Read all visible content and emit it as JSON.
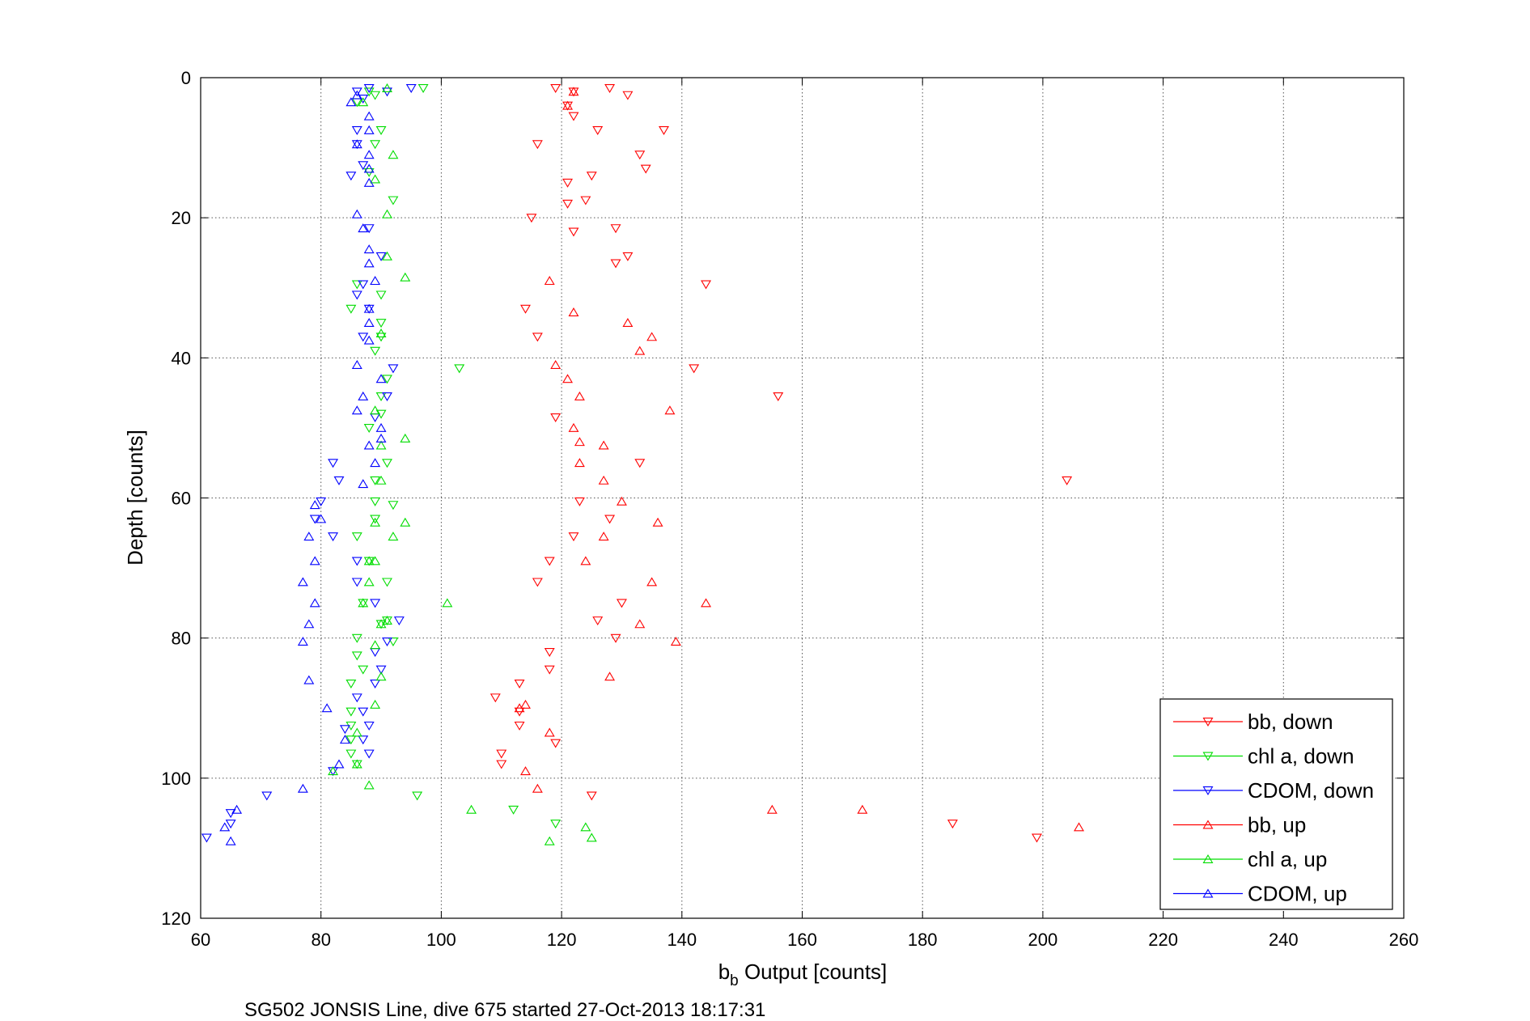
{
  "chart_data": {
    "type": "scatter",
    "title": "",
    "xlabel_main": "b",
    "xlabel_sub": "b",
    "xlabel_rest": " Output [counts]",
    "ylabel": "Depth [counts]",
    "xlim": [
      60,
      260
    ],
    "ylim": [
      0,
      120
    ],
    "y_inverted": true,
    "xticks": [
      60,
      80,
      100,
      120,
      140,
      160,
      180,
      200,
      220,
      240,
      260
    ],
    "yticks": [
      0,
      20,
      40,
      60,
      80,
      100,
      120
    ],
    "grid": true,
    "legend_position": "bottom-right",
    "caption": "SG502 JONSIS Line, dive 675 started 27-Oct-2013 18:17:31",
    "colors": {
      "bb": "#ff0000",
      "chl": "#00dd00",
      "cdom": "#0000ff",
      "grid": "#555555",
      "axis": "#000000"
    },
    "series": [
      {
        "name": "bb, down",
        "color": "#ff0000",
        "marker": "triangle-down",
        "points": [
          [
            119,
            1.5
          ],
          [
            122,
            2
          ],
          [
            128,
            1.5
          ],
          [
            131,
            2.5
          ],
          [
            121,
            4
          ],
          [
            122,
            5.5
          ],
          [
            126,
            7.5
          ],
          [
            137,
            7.5
          ],
          [
            116,
            9.5
          ],
          [
            133,
            11
          ],
          [
            134,
            13
          ],
          [
            125,
            14
          ],
          [
            121,
            15
          ],
          [
            124,
            17.5
          ],
          [
            121,
            18
          ],
          [
            115,
            20
          ],
          [
            129,
            21.5
          ],
          [
            122,
            22
          ],
          [
            131,
            25.5
          ],
          [
            129,
            26.5
          ],
          [
            144,
            29.5
          ],
          [
            114,
            33
          ],
          [
            116,
            37
          ],
          [
            142,
            41.5
          ],
          [
            156,
            45.5
          ],
          [
            119,
            48.5
          ],
          [
            133,
            55
          ],
          [
            204,
            57.5
          ],
          [
            123,
            60.5
          ],
          [
            128,
            63
          ],
          [
            122,
            65.5
          ],
          [
            118,
            69
          ],
          [
            116,
            72
          ],
          [
            130,
            75
          ],
          [
            126,
            77.5
          ],
          [
            129,
            80
          ],
          [
            118,
            82
          ],
          [
            118,
            84.5
          ],
          [
            113,
            86.5
          ],
          [
            109,
            88.5
          ],
          [
            113,
            90.5
          ],
          [
            113,
            92.5
          ],
          [
            119,
            95
          ],
          [
            110,
            96.5
          ],
          [
            110,
            98
          ],
          [
            125,
            102.5
          ],
          [
            185,
            106.5
          ],
          [
            199,
            108.5
          ]
        ]
      },
      {
        "name": "chl a, down",
        "color": "#00dd00",
        "marker": "triangle-down",
        "points": [
          [
            97,
            1.5
          ],
          [
            88,
            2
          ],
          [
            89,
            2.5
          ],
          [
            86,
            3.5
          ],
          [
            90,
            7.5
          ],
          [
            89,
            9.5
          ],
          [
            88,
            13.5
          ],
          [
            92,
            17.5
          ],
          [
            86,
            29.5
          ],
          [
            90,
            31
          ],
          [
            85,
            33
          ],
          [
            90,
            35
          ],
          [
            90,
            37
          ],
          [
            89,
            39
          ],
          [
            103,
            41.5
          ],
          [
            91,
            43
          ],
          [
            90,
            45.5
          ],
          [
            90,
            48
          ],
          [
            88,
            50
          ],
          [
            91,
            55
          ],
          [
            89,
            57.5
          ],
          [
            89,
            60.5
          ],
          [
            92,
            61
          ],
          [
            89,
            63
          ],
          [
            86,
            65.5
          ],
          [
            88,
            69
          ],
          [
            91,
            72
          ],
          [
            87,
            75
          ],
          [
            91,
            77.5
          ],
          [
            90,
            78
          ],
          [
            86,
            80
          ],
          [
            92,
            80.5
          ],
          [
            86,
            82.5
          ],
          [
            87,
            84.5
          ],
          [
            85,
            86.5
          ],
          [
            85,
            90.5
          ],
          [
            85,
            92.5
          ],
          [
            85,
            94.5
          ],
          [
            85,
            96.5
          ],
          [
            86,
            98
          ],
          [
            96,
            102.5
          ],
          [
            112,
            104.5
          ],
          [
            119,
            106.5
          ]
        ]
      },
      {
        "name": "CDOM, down",
        "color": "#0000ff",
        "marker": "triangle-down",
        "points": [
          [
            95,
            1.5
          ],
          [
            91,
            2
          ],
          [
            88,
            1.5
          ],
          [
            86,
            2
          ],
          [
            87,
            3
          ],
          [
            86,
            7.5
          ],
          [
            86,
            9.5
          ],
          [
            87,
            12.5
          ],
          [
            85,
            14
          ],
          [
            88,
            21.5
          ],
          [
            90,
            25.5
          ],
          [
            87,
            29.5
          ],
          [
            86,
            31
          ],
          [
            88,
            33
          ],
          [
            87,
            37
          ],
          [
            92,
            41.5
          ],
          [
            91,
            45.5
          ],
          [
            89,
            48.5
          ],
          [
            82,
            55
          ],
          [
            83,
            57.5
          ],
          [
            80,
            60.5
          ],
          [
            79,
            63
          ],
          [
            82,
            65.5
          ],
          [
            86,
            69
          ],
          [
            86,
            72
          ],
          [
            89,
            75
          ],
          [
            93,
            77.5
          ],
          [
            91,
            80.5
          ],
          [
            89,
            82
          ],
          [
            90,
            84.5
          ],
          [
            89,
            86.5
          ],
          [
            86,
            88.5
          ],
          [
            87,
            90.5
          ],
          [
            84,
            93
          ],
          [
            88,
            92.5
          ],
          [
            87,
            94.5
          ],
          [
            88,
            96.5
          ],
          [
            82,
            99
          ],
          [
            71,
            102.5
          ],
          [
            65,
            105
          ],
          [
            65,
            106.5
          ],
          [
            61,
            108.5
          ]
        ]
      },
      {
        "name": "bb, up",
        "color": "#ff0000",
        "marker": "triangle-up",
        "points": [
          [
            122,
            2
          ],
          [
            121,
            4
          ],
          [
            118,
            29
          ],
          [
            122,
            33.5
          ],
          [
            131,
            35
          ],
          [
            135,
            37
          ],
          [
            133,
            39
          ],
          [
            119,
            41
          ],
          [
            121,
            43
          ],
          [
            123,
            45.5
          ],
          [
            138,
            47.5
          ],
          [
            122,
            50
          ],
          [
            123,
            52
          ],
          [
            127,
            52.5
          ],
          [
            123,
            55
          ],
          [
            127,
            57.5
          ],
          [
            130,
            60.5
          ],
          [
            136,
            63.5
          ],
          [
            127,
            65.5
          ],
          [
            124,
            69
          ],
          [
            135,
            72
          ],
          [
            144,
            75
          ],
          [
            133,
            78
          ],
          [
            139,
            80.5
          ],
          [
            128,
            85.5
          ],
          [
            114,
            89.5
          ],
          [
            113,
            90
          ],
          [
            118,
            93.5
          ],
          [
            114,
            99
          ],
          [
            116,
            101.5
          ],
          [
            155,
            104.5
          ],
          [
            170,
            104.5
          ],
          [
            206,
            107
          ]
        ]
      },
      {
        "name": "chl a, up",
        "color": "#00dd00",
        "marker": "triangle-up",
        "points": [
          [
            87,
            3.5
          ],
          [
            91,
            1.5
          ],
          [
            92,
            11
          ],
          [
            89,
            14.5
          ],
          [
            91,
            19.5
          ],
          [
            91,
            25.5
          ],
          [
            94,
            28.5
          ],
          [
            90,
            36.5
          ],
          [
            89,
            47.5
          ],
          [
            94,
            51.5
          ],
          [
            90,
            52.5
          ],
          [
            90,
            57.5
          ],
          [
            89,
            63.5
          ],
          [
            94,
            63.5
          ],
          [
            92,
            65.5
          ],
          [
            89,
            69
          ],
          [
            88,
            69
          ],
          [
            88,
            72
          ],
          [
            87,
            75
          ],
          [
            101,
            75
          ],
          [
            90,
            78
          ],
          [
            91,
            77.5
          ],
          [
            89,
            81
          ],
          [
            90,
            85.5
          ],
          [
            89,
            89.5
          ],
          [
            86,
            93.5
          ],
          [
            86,
            98
          ],
          [
            82,
            99
          ],
          [
            88,
            101
          ],
          [
            105,
            104.5
          ],
          [
            124,
            107
          ],
          [
            125,
            108.5
          ],
          [
            118,
            109
          ]
        ]
      },
      {
        "name": "CDOM, up",
        "color": "#0000ff",
        "marker": "triangle-up",
        "points": [
          [
            86,
            2.5
          ],
          [
            85,
            3.5
          ],
          [
            88,
            5.5
          ],
          [
            88,
            7.5
          ],
          [
            86,
            9.5
          ],
          [
            88,
            11
          ],
          [
            88,
            13
          ],
          [
            88,
            15
          ],
          [
            86,
            19.5
          ],
          [
            87,
            21.5
          ],
          [
            88,
            24.5
          ],
          [
            88,
            26.5
          ],
          [
            89,
            29
          ],
          [
            88,
            33
          ],
          [
            88,
            35
          ],
          [
            88,
            37.5
          ],
          [
            86,
            41
          ],
          [
            90,
            43
          ],
          [
            87,
            45.5
          ],
          [
            86,
            47.5
          ],
          [
            90,
            50
          ],
          [
            90,
            51.5
          ],
          [
            88,
            52.5
          ],
          [
            89,
            55
          ],
          [
            87,
            58
          ],
          [
            79,
            61
          ],
          [
            80,
            63
          ],
          [
            78,
            65.5
          ],
          [
            79,
            69
          ],
          [
            77,
            72
          ],
          [
            79,
            75
          ],
          [
            78,
            78
          ],
          [
            77,
            80.5
          ],
          [
            78,
            86
          ],
          [
            81,
            90
          ],
          [
            84,
            94.5
          ],
          [
            83,
            98
          ],
          [
            77,
            101.5
          ],
          [
            66,
            104.5
          ],
          [
            64,
            107
          ],
          [
            65,
            109
          ]
        ]
      }
    ]
  }
}
